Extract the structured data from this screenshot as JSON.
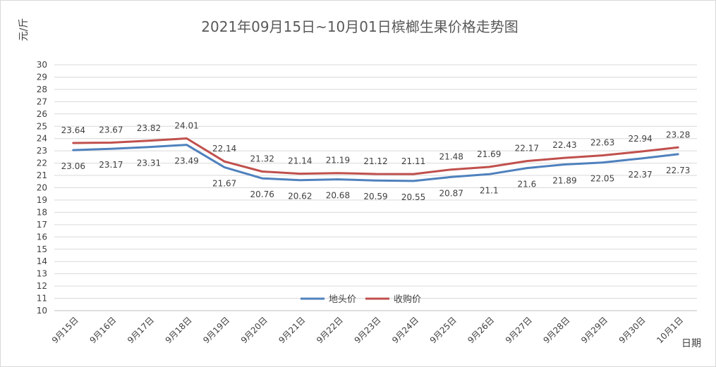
{
  "chart_data": {
    "type": "line",
    "title": "2021年09月15日~10月01日槟榔生果价格走势图",
    "xlabel": "日期",
    "ylabel": "元/斤",
    "categories": [
      "9月15日",
      "9月16日",
      "9月17日",
      "9月18日",
      "9月19日",
      "9月20日",
      "9月21日",
      "9月22日",
      "9月23日",
      "9月24日",
      "9月25日",
      "9月26日",
      "9月27日",
      "9月28日",
      "9月29日",
      "9月30日",
      "10月1日"
    ],
    "ylim": [
      10,
      30
    ],
    "yticks": [
      10,
      11,
      12,
      13,
      14,
      15,
      16,
      17,
      18,
      19,
      20,
      21,
      22,
      23,
      24,
      25,
      26,
      27,
      28,
      29,
      30
    ],
    "grid": true,
    "legend_position": "bottom-center",
    "series": [
      {
        "name": "地头价",
        "color": "#4f81bd",
        "values": [
          23.06,
          23.17,
          23.31,
          23.49,
          21.67,
          20.76,
          20.62,
          20.68,
          20.59,
          20.55,
          20.87,
          21.1,
          21.6,
          21.89,
          22.05,
          22.37,
          22.73
        ]
      },
      {
        "name": "收购价",
        "color": "#c0504d",
        "values": [
          23.64,
          23.67,
          23.82,
          24.01,
          22.14,
          21.32,
          21.14,
          21.19,
          21.12,
          21.11,
          21.48,
          21.69,
          22.17,
          22.43,
          22.63,
          22.94,
          23.28
        ]
      }
    ]
  }
}
